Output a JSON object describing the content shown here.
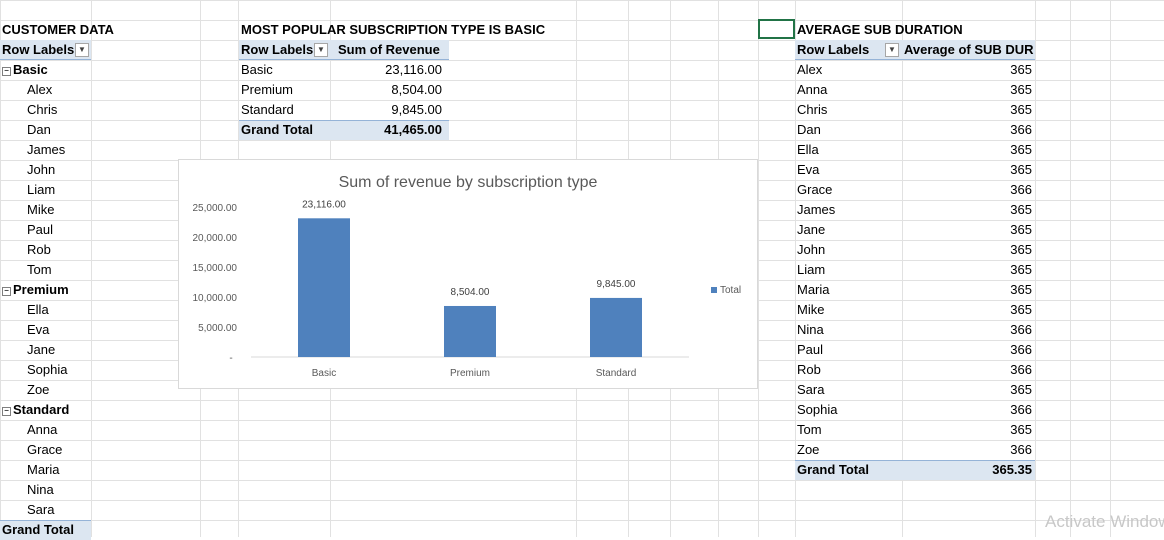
{
  "customer": {
    "title": "CUSTOMER DATA",
    "row_labels": "Row Labels",
    "grand_total": "Grand Total",
    "groups": [
      {
        "name": "Basic",
        "members": [
          "Alex",
          "Chris",
          "Dan",
          "James",
          "John",
          "Liam",
          "Mike",
          "Paul",
          "Rob",
          "Tom"
        ]
      },
      {
        "name": "Premium",
        "members": [
          "Ella",
          "Eva",
          "Jane",
          "Sophia",
          "Zoe"
        ]
      },
      {
        "name": "Standard",
        "members": [
          "Anna",
          "Grace",
          "Maria",
          "Nina",
          "Sara"
        ]
      }
    ]
  },
  "popular": {
    "title": "MOST POPULAR SUBSCRIPTION TYPE IS BASIC",
    "row_labels": "Row Labels",
    "value_header": "Sum of Revenue",
    "rows": [
      {
        "label": "Basic",
        "value": "23,116.00"
      },
      {
        "label": "Premium",
        "value": "8,504.00"
      },
      {
        "label": "Standard",
        "value": "9,845.00"
      }
    ],
    "grand_total_label": "Grand Total",
    "grand_total_value": "41,465.00"
  },
  "duration": {
    "title": "AVERAGE SUB DURATION",
    "row_labels": "Row Labels",
    "value_header": "Average of SUB DUR",
    "rows": [
      {
        "label": "Alex",
        "value": "365"
      },
      {
        "label": "Anna",
        "value": "365"
      },
      {
        "label": "Chris",
        "value": "365"
      },
      {
        "label": "Dan",
        "value": "366"
      },
      {
        "label": "Ella",
        "value": "365"
      },
      {
        "label": "Eva",
        "value": "365"
      },
      {
        "label": "Grace",
        "value": "366"
      },
      {
        "label": "James",
        "value": "365"
      },
      {
        "label": "Jane",
        "value": "365"
      },
      {
        "label": "John",
        "value": "365"
      },
      {
        "label": "Liam",
        "value": "365"
      },
      {
        "label": "Maria",
        "value": "365"
      },
      {
        "label": "Mike",
        "value": "365"
      },
      {
        "label": "Nina",
        "value": "366"
      },
      {
        "label": "Paul",
        "value": "366"
      },
      {
        "label": "Rob",
        "value": "366"
      },
      {
        "label": "Sara",
        "value": "365"
      },
      {
        "label": "Sophia",
        "value": "366"
      },
      {
        "label": "Tom",
        "value": "365"
      },
      {
        "label": "Zoe",
        "value": "366"
      }
    ],
    "grand_total_label": "Grand Total",
    "grand_total_value": "365.35"
  },
  "chart_data": {
    "type": "bar",
    "title": "Sum of revenue by subscription type",
    "categories": [
      "Basic",
      "Premium",
      "Standard"
    ],
    "values": [
      23116,
      8504,
      9845
    ],
    "data_labels": [
      "23,116.00",
      "8,504.00",
      "9,845.00"
    ],
    "y_ticks": [
      0,
      5000,
      10000,
      15000,
      20000,
      25000
    ],
    "y_tick_labels": [
      "-",
      "5,000.00",
      "10,000.00",
      "15,000.00",
      "20,000.00",
      "25,000.00"
    ],
    "ylim": [
      0,
      25000
    ],
    "legend": "Total",
    "legend_position": "right",
    "color": "#4f81bd",
    "grid": false
  },
  "watermark": "Activate Windows"
}
